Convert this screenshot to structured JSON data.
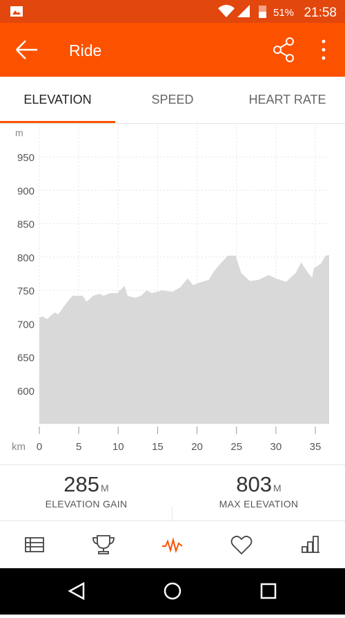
{
  "status_bar": {
    "battery": "51%",
    "time": "21:58"
  },
  "app_bar": {
    "title": "Ride"
  },
  "tabs": [
    "ELEVATION",
    "SPEED",
    "HEART RATE"
  ],
  "chart_data": {
    "type": "area",
    "y_unit_label": "m",
    "x_unit_label": "km",
    "x": [
      0,
      0.4,
      1,
      1.6,
      2,
      2.4,
      3.3,
      4.2,
      5.5,
      6,
      6.8,
      7.7,
      8.1,
      9,
      9.9,
      10.8,
      11.2,
      12.1,
      12.9,
      13.6,
      14.3,
      15.6,
      16.9,
      17.9,
      18.8,
      19.5,
      20.4,
      21.5,
      22.1,
      22.8,
      23.9,
      24.9,
      25.6,
      26.7,
      27.8,
      29.1,
      30,
      31.3,
      32.5,
      33.2,
      34.1,
      34.6,
      34.8,
      35.7,
      36.3,
      36.75
    ],
    "values": [
      709,
      711,
      707,
      714,
      717,
      714,
      729,
      742,
      742,
      733,
      742,
      745,
      742,
      746,
      746,
      757,
      742,
      739,
      742,
      750,
      746,
      750,
      748,
      755,
      768,
      758,
      762,
      766,
      778,
      788,
      802,
      802,
      776,
      764,
      766,
      773,
      768,
      763,
      776,
      792,
      776,
      769,
      783,
      790,
      802,
      803
    ],
    "color": "#d9d9d9",
    "xlim": [
      0,
      36.75
    ],
    "xticks": [
      0,
      5,
      10,
      15,
      20,
      25,
      30,
      35
    ],
    "ylim": [
      550,
      1000
    ],
    "yticks": [
      600,
      650,
      700,
      750,
      800,
      850,
      900,
      950
    ],
    "grid": true
  },
  "stats": [
    {
      "value": "285",
      "unit": "M",
      "label": "ELEVATION GAIN"
    },
    {
      "value": "803",
      "unit": "M",
      "label": "MAX ELEVATION"
    }
  ]
}
